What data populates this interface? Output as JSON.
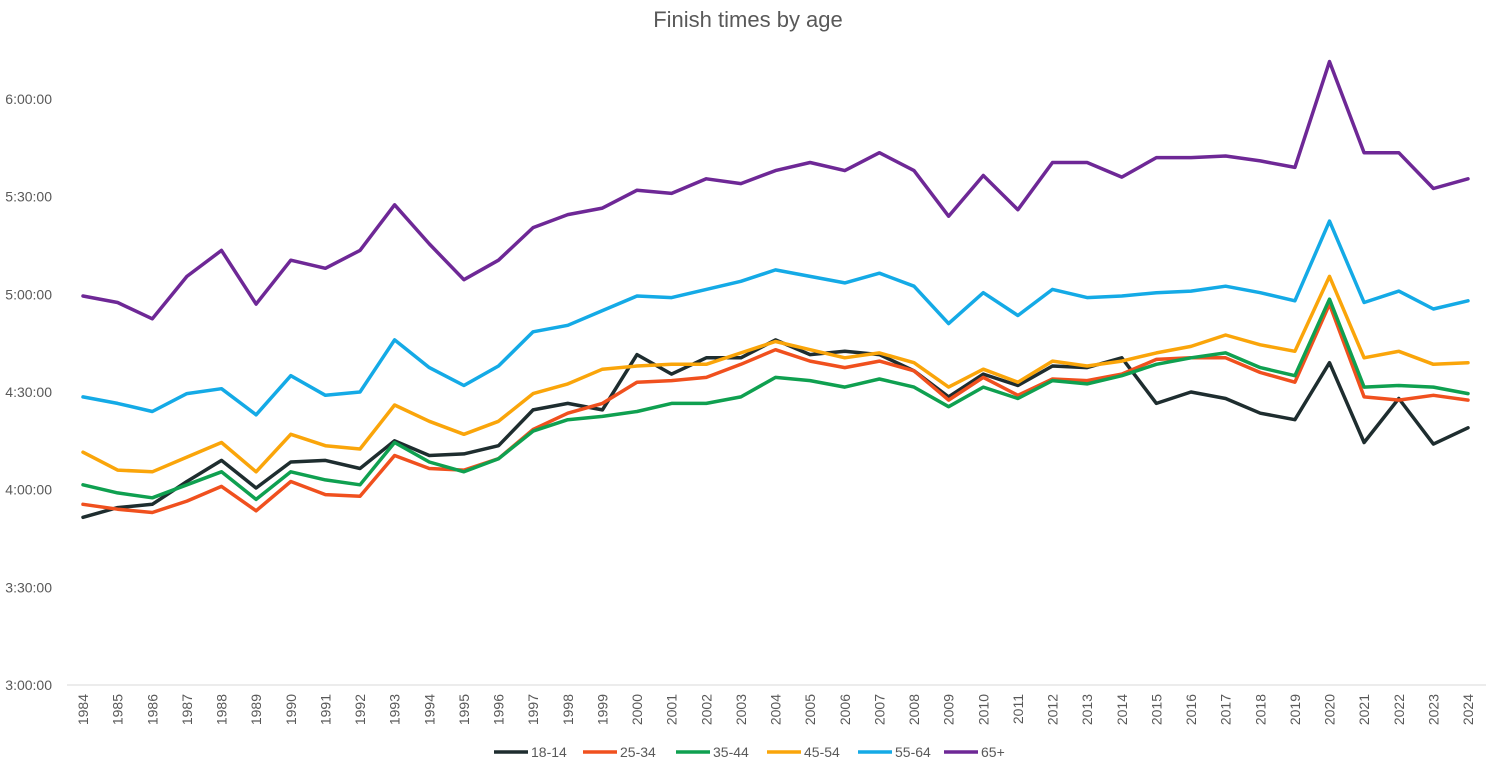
{
  "chart_data": {
    "type": "line",
    "title": "Finish times by age",
    "xlabel": "",
    "ylabel": "",
    "ylim": [
      "3:00:00",
      "6:12:00"
    ],
    "yticks": [
      "3:00:00",
      "3:30:00",
      "4:00:00",
      "4:30:00",
      "5:00:00",
      "5:30:00",
      "6:00:00"
    ],
    "grid": false,
    "legend_position": "bottom",
    "categories": [
      "1984",
      "1985",
      "1986",
      "1987",
      "1988",
      "1989",
      "1990",
      "1991",
      "1992",
      "1993",
      "1994",
      "1995",
      "1996",
      "1997",
      "1998",
      "1999",
      "2000",
      "2001",
      "2002",
      "2003",
      "2004",
      "2005",
      "2006",
      "2007",
      "2008",
      "2009",
      "2010",
      "2011",
      "2012",
      "2013",
      "2014",
      "2015",
      "2016",
      "2017",
      "2018",
      "2019",
      "2020",
      "2021",
      "2022",
      "2023",
      "2024"
    ],
    "series": [
      {
        "name": "18-14",
        "color": "#1e2d2f",
        "values": [
          "3:51:30",
          "3:54:30",
          "3:55:30",
          "4:02:30",
          "4:09:00",
          "4:00:30",
          "4:08:30",
          "4:09:00",
          "4:06:30",
          "4:15:00",
          "4:10:30",
          "4:11:00",
          "4:13:30",
          "4:24:30",
          "4:26:30",
          "4:24:30",
          "4:41:30",
          "4:35:30",
          "4:40:30",
          "4:40:30",
          "4:46:00",
          "4:41:30",
          "4:42:30",
          "4:41:30",
          "4:36:30",
          "4:28:30",
          "4:35:30",
          "4:32:00",
          "4:38:00",
          "4:37:30",
          "4:40:30",
          "4:26:30",
          "4:30:00",
          "4:28:00",
          "4:23:30",
          "4:21:30",
          "4:39:00",
          "4:14:30",
          "4:28:00",
          "4:14:00",
          "4:19:00"
        ]
      },
      {
        "name": "25-34",
        "color": "#f0501e",
        "values": [
          "3:55:30",
          "3:54:00",
          "3:53:00",
          "3:56:30",
          "4:01:00",
          "3:53:30",
          "4:02:30",
          "3:58:30",
          "3:58:00",
          "4:10:30",
          "4:06:30",
          "4:06:00",
          "4:09:30",
          "4:18:30",
          "4:23:30",
          "4:26:30",
          "4:33:00",
          "4:33:30",
          "4:34:30",
          "4:38:30",
          "4:43:00",
          "4:39:30",
          "4:37:30",
          "4:39:30",
          "4:36:30",
          "4:27:30",
          "4:34:30",
          "4:29:00",
          "4:34:00",
          "4:33:30",
          "4:35:30",
          "4:40:00",
          "4:40:30",
          "4:40:30",
          "4:36:00",
          "4:33:00",
          "4:57:00",
          "4:28:30",
          "4:27:30",
          "4:29:00",
          "4:27:30"
        ]
      },
      {
        "name": "35-44",
        "color": "#0fa050",
        "values": [
          "4:01:30",
          "3:59:00",
          "3:57:30",
          "4:01:30",
          "4:05:30",
          "3:57:00",
          "4:05:30",
          "4:03:00",
          "4:01:30",
          "4:14:30",
          "4:08:30",
          "4:05:30",
          "4:09:30",
          "4:18:00",
          "4:21:30",
          "4:22:30",
          "4:24:00",
          "4:26:30",
          "4:26:30",
          "4:28:30",
          "4:34:30",
          "4:33:30",
          "4:31:30",
          "4:34:00",
          "4:31:30",
          "4:25:30",
          "4:31:30",
          "4:28:00",
          "4:33:30",
          "4:32:30",
          "4:35:00",
          "4:38:30",
          "4:40:30",
          "4:42:00",
          "4:37:30",
          "4:35:00",
          "4:58:30",
          "4:31:30",
          "4:32:00",
          "4:31:30",
          "4:29:30"
        ]
      },
      {
        "name": "45-54",
        "color": "#faa50a",
        "values": [
          "4:11:30",
          "4:06:00",
          "4:05:30",
          "4:10:00",
          "4:14:30",
          "4:05:30",
          "4:17:00",
          "4:13:30",
          "4:12:30",
          "4:26:00",
          "4:21:00",
          "4:17:00",
          "4:21:00",
          "4:29:30",
          "4:32:30",
          "4:37:00",
          "4:38:00",
          "4:38:30",
          "4:38:30",
          "4:42:00",
          "4:45:30",
          "4:43:00",
          "4:40:30",
          "4:42:00",
          "4:39:00",
          "4:31:30",
          "4:37:00",
          "4:33:00",
          "4:39:30",
          "4:38:00",
          "4:39:30",
          "4:42:00",
          "4:44:00",
          "4:47:30",
          "4:44:30",
          "4:42:30",
          "5:05:30",
          "4:40:30",
          "4:42:30",
          "4:38:30",
          "4:39:00"
        ]
      },
      {
        "name": "55-64",
        "color": "#14aae6",
        "values": [
          "4:28:30",
          "4:26:30",
          "4:24:00",
          "4:29:30",
          "4:31:00",
          "4:23:00",
          "4:35:00",
          "4:29:00",
          "4:30:00",
          "4:46:00",
          "4:37:30",
          "4:32:00",
          "4:38:00",
          "4:48:30",
          "4:50:30",
          "4:55:00",
          "4:59:30",
          "4:59:00",
          "5:01:30",
          "5:04:00",
          "5:07:30",
          "5:05:30",
          "5:03:30",
          "5:06:30",
          "5:02:30",
          "4:51:00",
          "5:00:30",
          "4:53:30",
          "5:01:30",
          "4:59:00",
          "4:59:30",
          "5:00:30",
          "5:01:00",
          "5:02:30",
          "5:00:30",
          "4:58:00",
          "5:22:30",
          "4:57:30",
          "5:01:00",
          "4:55:30",
          "4:58:00"
        ]
      },
      {
        "name": "65+",
        "color": "#6e2896",
        "values": [
          "4:59:30",
          "4:57:30",
          "4:52:30",
          "5:05:30",
          "5:13:30",
          "4:57:00",
          "5:10:30",
          "5:08:00",
          "5:13:30",
          "5:27:30",
          "5:15:30",
          "5:04:30",
          "5:10:30",
          "5:20:30",
          "5:24:30",
          "5:26:30",
          "5:32:00",
          "5:31:00",
          "5:35:30",
          "5:34:00",
          "5:38:00",
          "5:40:30",
          "5:38:00",
          "5:43:30",
          "5:38:00",
          "5:24:00",
          "5:36:30",
          "5:26:00",
          "5:40:30",
          "5:40:30",
          "5:36:00",
          "5:42:00",
          "5:42:00",
          "5:42:30",
          "5:41:00",
          "5:39:00",
          "6:11:30",
          "5:43:30",
          "5:43:30",
          "5:32:30",
          "5:35:30"
        ]
      }
    ]
  }
}
